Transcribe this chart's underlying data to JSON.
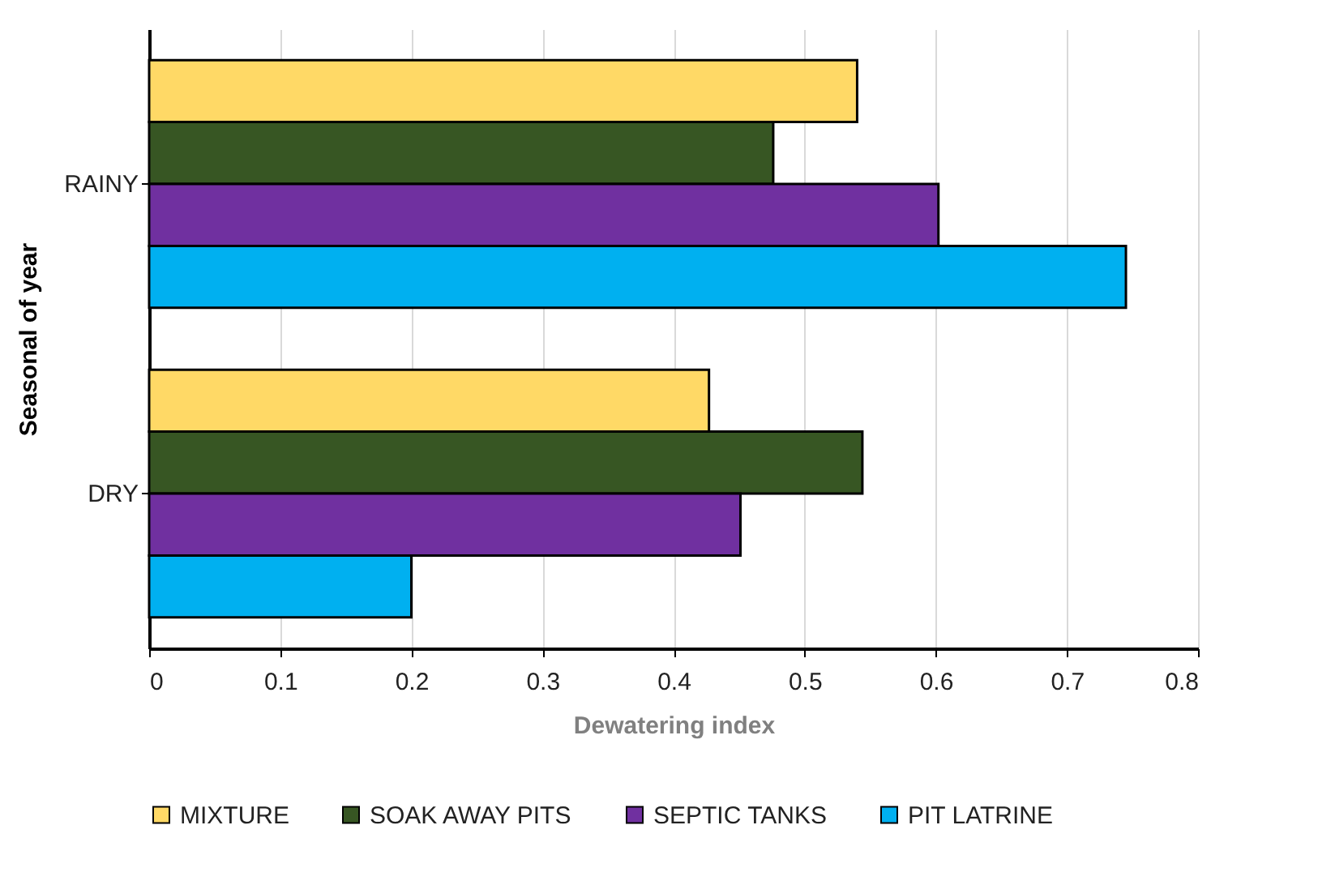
{
  "chart_data": {
    "type": "bar",
    "orientation": "horizontal",
    "xlabel": "Dewatering index",
    "ylabel": "Seasonal of year",
    "categories": [
      "RAINY",
      "DRY"
    ],
    "series": [
      {
        "name": "MIXTURE",
        "color": "#ffd966",
        "values": [
          0.54,
          0.427
        ]
      },
      {
        "name": "SOAK AWAY PITS",
        "color": "#375623",
        "values": [
          0.476,
          0.544
        ]
      },
      {
        "name": "SEPTIC TANKS",
        "color": "#7030a0",
        "values": [
          0.602,
          0.451
        ]
      },
      {
        "name": "PIT LATRINE",
        "color": "#00b0f0",
        "values": [
          0.745,
          0.2
        ]
      }
    ],
    "xlim": [
      0,
      0.8
    ],
    "xticks": [
      0,
      0.1,
      0.2,
      0.3,
      0.4,
      0.5,
      0.6,
      0.7,
      0.8
    ],
    "grid": "x",
    "legend": "bottom"
  }
}
